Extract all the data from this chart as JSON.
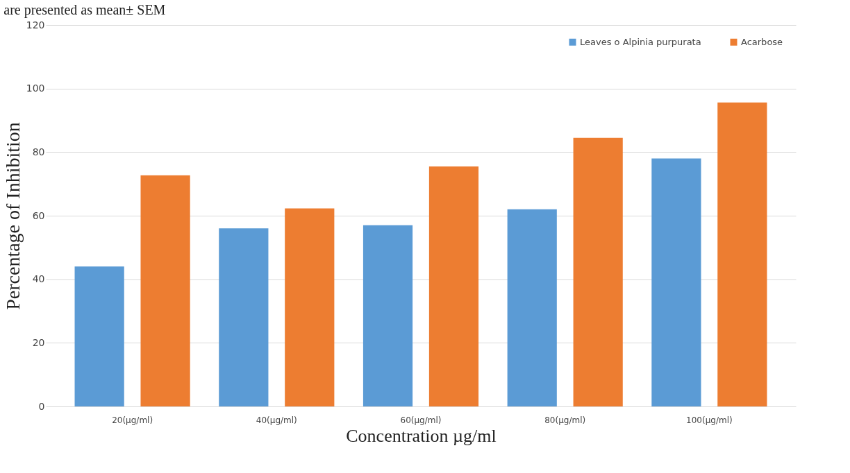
{
  "chart_data": {
    "type": "bar",
    "ylabel": "Percentage of Inhibition",
    "xlabel": "Concentration µg/ml",
    "annotations": [
      "are presented as mean± SEM"
    ],
    "categories": [
      "20(µg/ml)",
      "40(µg/ml)",
      "60(µg/ml)",
      "80(µg/ml)",
      "100(µg/ml)"
    ],
    "series": [
      {
        "name": "Leaves o Alpinia purpurata",
        "color": "#5b9bd5",
        "values": [
          44,
          56,
          57,
          62,
          78
        ]
      },
      {
        "name": "Acarbose",
        "color": "#ed7d31",
        "values": [
          72.7,
          62.3,
          75.5,
          84.5,
          95.6
        ]
      }
    ],
    "ylim": [
      0,
      120
    ],
    "yticks": [
      0,
      20,
      40,
      60,
      80,
      100,
      120
    ],
    "grid": "y",
    "legend": "top right"
  }
}
